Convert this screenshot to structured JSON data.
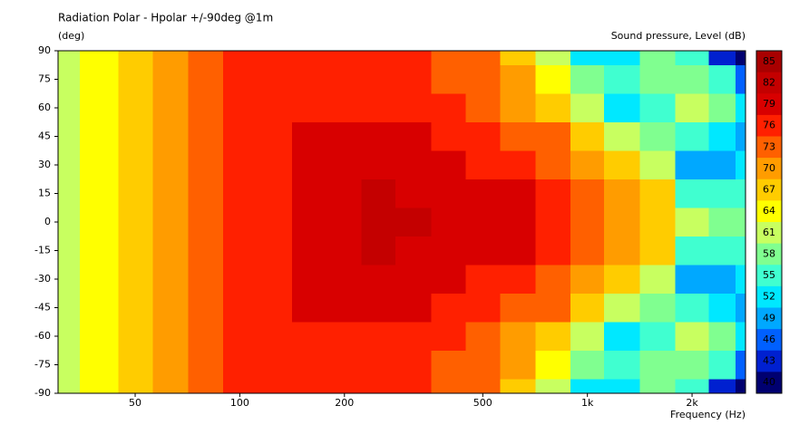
{
  "chart_data": {
    "type": "contour",
    "title": "Radiation Polar - Hpolar +/-90deg @1m",
    "y_label": "(deg)",
    "x_label": "Frequency  (Hz)",
    "colorbar_label": "Sound pressure, Level  (dB)",
    "log_x": true,
    "xlim": [
      30,
      2850
    ],
    "xticks": [
      50,
      100,
      200,
      500,
      {
        "value": 1000,
        "label": "1k"
      },
      {
        "value": 2000,
        "label": "2k"
      }
    ],
    "ylim": [
      -90,
      90
    ],
    "yticks": [
      90,
      75,
      60,
      45,
      30,
      15,
      0,
      -15,
      -30,
      -45,
      -60,
      -75,
      -90
    ],
    "x": [
      30,
      40,
      50,
      63,
      80,
      100,
      125,
      160,
      200,
      250,
      315,
      400,
      500,
      630,
      800,
      1000,
      1250,
      1600,
      2000,
      2500,
      2850
    ],
    "y": [
      90,
      75,
      60,
      45,
      30,
      15,
      0,
      -15,
      -30,
      -45,
      -60,
      -75,
      -90
    ],
    "z": [
      [
        62,
        65,
        68,
        71,
        73,
        74.5,
        76,
        77,
        76,
        75.5,
        75,
        73,
        71.5,
        67,
        60,
        53,
        52,
        57,
        54,
        43,
        40
      ],
      [
        62,
        65,
        68,
        71,
        73,
        74.5,
        76.5,
        77,
        76.5,
        76,
        76,
        74,
        72.5,
        68.5,
        64,
        57,
        55,
        57,
        58,
        54,
        46
      ],
      [
        62,
        65,
        68,
        71,
        73,
        74.5,
        77,
        77,
        77,
        77,
        76.5,
        75,
        73.5,
        71,
        68,
        62,
        52,
        56,
        61,
        59,
        53
      ],
      [
        62,
        65,
        68,
        71,
        73,
        75,
        77,
        77.5,
        78,
        78.5,
        78,
        76.5,
        75.5,
        74,
        71.5,
        67,
        61,
        57,
        55,
        52,
        50
      ],
      [
        62,
        65,
        68,
        71,
        73,
        75,
        77,
        78,
        79.5,
        80,
        79,
        78,
        77,
        76,
        74,
        71,
        66,
        62,
        49,
        50,
        52
      ],
      [
        62,
        65,
        68,
        71,
        73,
        75,
        77,
        78.5,
        80,
        80.5,
        80,
        79.5,
        79,
        78,
        76,
        73,
        69,
        66,
        56,
        55,
        54
      ],
      [
        62,
        65,
        68,
        71,
        73,
        75,
        77,
        78.5,
        80,
        80.5,
        80.5,
        80,
        80,
        79.5,
        77,
        74,
        70,
        67,
        61,
        59,
        58
      ],
      [
        62,
        65,
        68,
        71,
        73,
        75,
        77,
        78.5,
        80,
        80.5,
        80,
        79.5,
        79,
        78,
        76,
        73,
        69,
        66,
        56,
        55,
        54
      ],
      [
        62,
        65,
        68,
        71,
        73,
        75,
        77,
        78,
        79.5,
        80,
        79,
        78,
        77,
        76,
        74,
        71,
        66,
        62,
        49,
        50,
        52
      ],
      [
        62,
        65,
        68,
        71,
        73,
        75,
        77,
        77.5,
        78,
        78.5,
        78,
        76.5,
        75.5,
        74,
        71.5,
        67,
        61,
        57,
        55,
        52,
        50
      ],
      [
        62,
        65,
        68,
        71,
        73,
        74.5,
        77,
        77,
        77,
        77,
        76.5,
        75,
        73.5,
        71,
        68,
        62,
        52,
        56,
        61,
        59,
        53
      ],
      [
        62,
        65,
        68,
        71,
        73,
        74.5,
        76.5,
        77,
        76.5,
        76,
        76,
        74,
        72.5,
        68.5,
        64,
        57,
        55,
        57,
        58,
        54,
        46
      ],
      [
        62,
        65,
        68,
        71,
        73,
        74.5,
        76,
        77,
        76,
        75.5,
        75,
        73,
        71.5,
        67,
        60,
        53,
        52,
        57,
        54,
        43,
        40
      ]
    ],
    "levels": [
      85,
      82,
      79,
      76,
      73,
      70,
      67,
      64,
      61,
      58,
      55,
      52,
      49,
      46,
      43,
      40
    ],
    "colors": [
      "#a80000",
      "#c40000",
      "#d80000",
      "#ff2000",
      "#ff6000",
      "#ff9c00",
      "#ffcc00",
      "#ffff00",
      "#c8ff60",
      "#80ff90",
      "#40ffd0",
      "#00e8ff",
      "#00a8ff",
      "#0060ff",
      "#0020d0",
      "#000070"
    ]
  }
}
